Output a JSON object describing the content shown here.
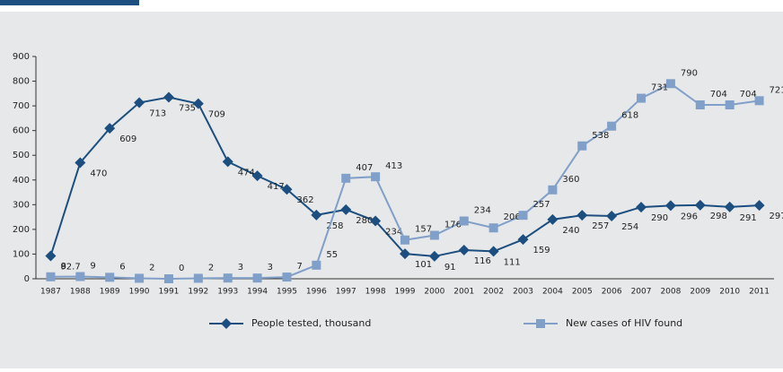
{
  "chart_data": {
    "type": "line",
    "categories": [
      "1987",
      "1988",
      "1989",
      "1990",
      "1991",
      "1992",
      "1993",
      "1994",
      "1995",
      "1996",
      "1997",
      "1998",
      "1999",
      "2000",
      "2001",
      "2002",
      "2003",
      "2004",
      "2005",
      "2006",
      "2007",
      "2008",
      "2009",
      "2010",
      "2011"
    ],
    "series": [
      {
        "name": "People tested, thousand",
        "color": "#1c4f80",
        "marker": "diamond",
        "values": [
          92.7,
          470,
          609,
          713,
          735,
          709,
          474,
          417,
          362,
          258,
          280,
          234,
          101,
          91,
          116,
          111,
          159,
          240,
          257,
          254,
          290,
          296,
          298,
          291,
          297
        ]
      },
      {
        "name": "New cases of HIV found",
        "color": "#809fc9",
        "marker": "square",
        "values": [
          8,
          9,
          6,
          2,
          0,
          2,
          3,
          3,
          7,
          55,
          407,
          413,
          157,
          176,
          234,
          206,
          257,
          360,
          538,
          618,
          731,
          790,
          704,
          704,
          721
        ]
      }
    ],
    "ylim": [
      0,
      900
    ],
    "yticks": [
      0,
      100,
      200,
      300,
      400,
      500,
      600,
      700,
      800,
      900
    ],
    "grid": false,
    "legend": "bottom"
  }
}
